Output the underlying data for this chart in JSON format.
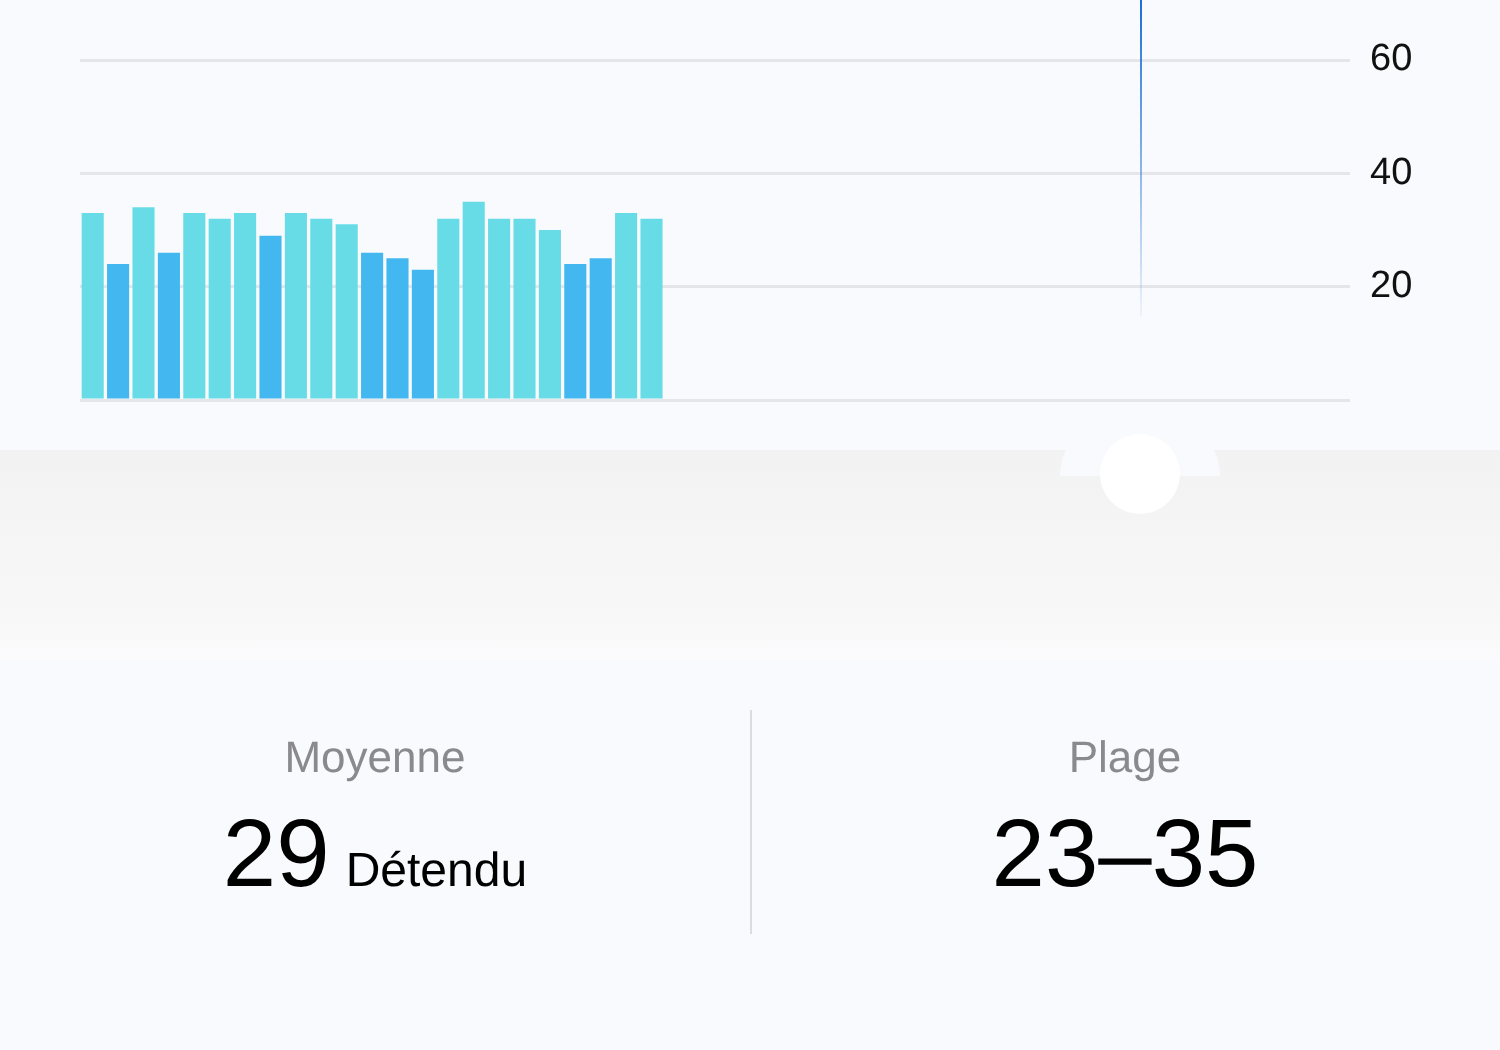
{
  "chart_data": {
    "type": "bar",
    "categories": [
      null,
      null,
      null,
      null,
      null,
      null,
      null,
      null,
      null,
      null,
      null,
      null,
      null,
      null,
      null,
      null,
      null,
      null,
      null,
      null,
      null,
      null,
      null,
      null,
      null,
      null,
      null,
      null,
      null,
      null,
      null,
      null,
      null,
      null,
      null,
      null,
      null,
      null,
      null,
      null,
      null,
      null,
      null,
      null,
      null,
      null,
      null,
      null,
      null,
      null
    ],
    "values": [
      33,
      24,
      34,
      26,
      33,
      32,
      33,
      29,
      33,
      32,
      31,
      26,
      25,
      23,
      32,
      35,
      32,
      32,
      30,
      24,
      25,
      33,
      32,
      null,
      null,
      null,
      null,
      null,
      null,
      null,
      null,
      null,
      null,
      null,
      null,
      null,
      null,
      null,
      null,
      null,
      null,
      null,
      null,
      null,
      null,
      null,
      null,
      null,
      null,
      null
    ],
    "colors": [
      "#68dce6",
      "#42b7f0",
      "#68dce6",
      "#42b7f0",
      "#68dce6",
      "#68dce6",
      "#68dce6",
      "#42b7f0",
      "#68dce6",
      "#68dce6",
      "#68dce6",
      "#42b7f0",
      "#42b7f0",
      "#42b7f0",
      "#68dce6",
      "#68dce6",
      "#68dce6",
      "#68dce6",
      "#68dce6",
      "#42b7f0",
      "#42b7f0",
      "#68dce6",
      "#68dce6",
      "#68dce6",
      "#68dce6",
      "#68dce6",
      "#68dce6",
      "#68dce6",
      "#68dce6",
      "#68dce6",
      "#68dce6",
      "#68dce6",
      "#68dce6",
      "#68dce6",
      "#68dce6",
      "#68dce6",
      "#68dce6",
      "#68dce6",
      "#68dce6",
      "#68dce6",
      "#68dce6",
      "#68dce6",
      "#68dce6",
      "#68dce6",
      "#68dce6",
      "#68dce6",
      "#68dce6",
      "#68dce6",
      "#68dce6",
      "#68dce6"
    ],
    "ylim": [
      0,
      60
    ],
    "yticks": [
      {
        "value": 0,
        "label": null
      },
      20,
      40,
      60
    ],
    "grid": "y",
    "tick_labels": "y",
    "annotations": [
      "Moyenne",
      "29",
      "Détendu",
      "Plage",
      "23–35"
    ]
  }
}
